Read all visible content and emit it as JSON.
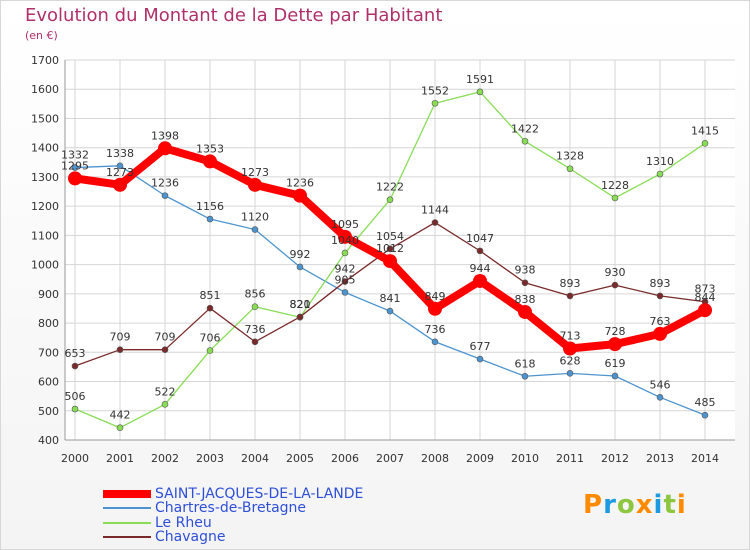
{
  "header": {
    "title": "Evolution du Montant de la Dette par Habitant",
    "subtitle": "(en €)"
  },
  "logo": {
    "text": "Proxiti"
  },
  "colors": {
    "title": "#b0306a",
    "axis_text": "#333333",
    "grid": "#d6d6d6"
  },
  "chart_data": {
    "type": "line",
    "title": "Evolution du Montant de la Dette par Habitant",
    "subtitle": "(en €)",
    "x": [
      "2000",
      "2001",
      "2002",
      "2003",
      "2004",
      "2005",
      "2006",
      "2007",
      "2008",
      "2009",
      "2010",
      "2011",
      "2012",
      "2013",
      "2014"
    ],
    "ylim": [
      400,
      1700
    ],
    "yticks": [
      400,
      500,
      600,
      700,
      800,
      900,
      1000,
      1100,
      1200,
      1300,
      1400,
      1500,
      1600,
      1700
    ],
    "grid": true,
    "legend_position": "bottom-left",
    "series": [
      {
        "name": "SAINT-JACQUES-DE-LA-LANDE",
        "color": "#ff0000",
        "values": [
          1295,
          1273,
          1398,
          1353,
          1273,
          1236,
          1095,
          1012,
          849,
          944,
          838,
          713,
          728,
          763,
          844
        ]
      },
      {
        "name": "Chartres-de-Bretagne",
        "color": "#4d94cf",
        "values": [
          1332,
          1338,
          1236,
          1156,
          1120,
          992,
          905,
          841,
          736,
          677,
          618,
          628,
          619,
          546,
          485
        ]
      },
      {
        "name": "Le Rheu",
        "color": "#88dd55",
        "values": [
          506,
          442,
          522,
          706,
          856,
          820,
          1040,
          1222,
          1552,
          1591,
          1422,
          1328,
          1228,
          1310,
          1415
        ]
      },
      {
        "name": "Chavagne",
        "color": "#7a2a2a",
        "values": [
          653,
          709,
          709,
          851,
          736,
          821,
          942,
          1054,
          1144,
          1047,
          938,
          893,
          930,
          893,
          873
        ]
      }
    ]
  }
}
